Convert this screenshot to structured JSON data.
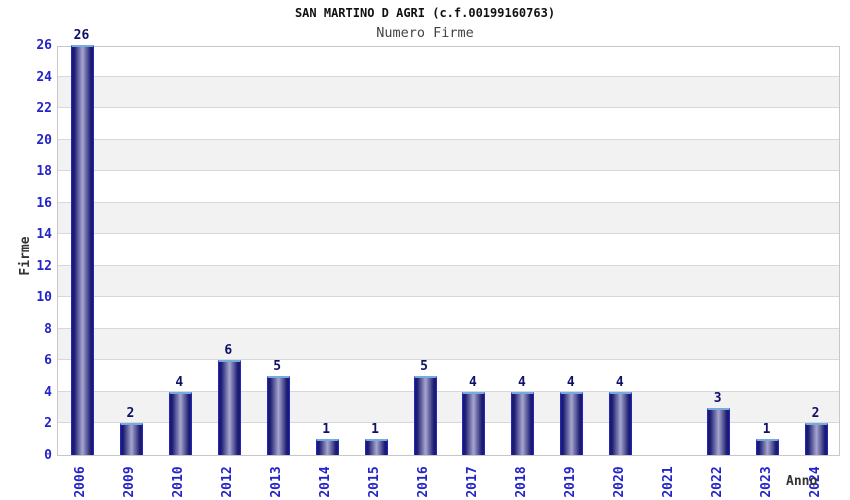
{
  "chart_data": {
    "type": "bar",
    "title": "SAN MARTINO D AGRI (c.f.00199160763)",
    "subtitle": "Numero Firme",
    "xlabel": "Anno",
    "ylabel": "Firme",
    "categories": [
      "2006",
      "2009",
      "2010",
      "2012",
      "2013",
      "2014",
      "2015",
      "2016",
      "2017",
      "2018",
      "2019",
      "2020",
      "2021",
      "2022",
      "2023",
      "2024"
    ],
    "values": [
      26,
      2,
      4,
      6,
      5,
      1,
      1,
      5,
      4,
      4,
      4,
      4,
      0,
      3,
      1,
      2
    ],
    "ylim": [
      0,
      26
    ],
    "ytick_step": 2,
    "legend": "none",
    "grid": "horizontal-gridlines-with-alternating-bands",
    "colors": {
      "tick_label": "#2424c8",
      "value_label": "#10106a",
      "band": "#f2f2f2",
      "gridline": "#d8d8d8",
      "plot_border": "#c8c8c8",
      "bar_dark": "#1b1b72",
      "bar_light": "#a6a6ce",
      "bar_side_border": "#2525c0",
      "bar_top_border": "#77aadd",
      "title_color": "#111111",
      "subtitle_color": "#444444",
      "axis_label_color": "#333333"
    }
  }
}
